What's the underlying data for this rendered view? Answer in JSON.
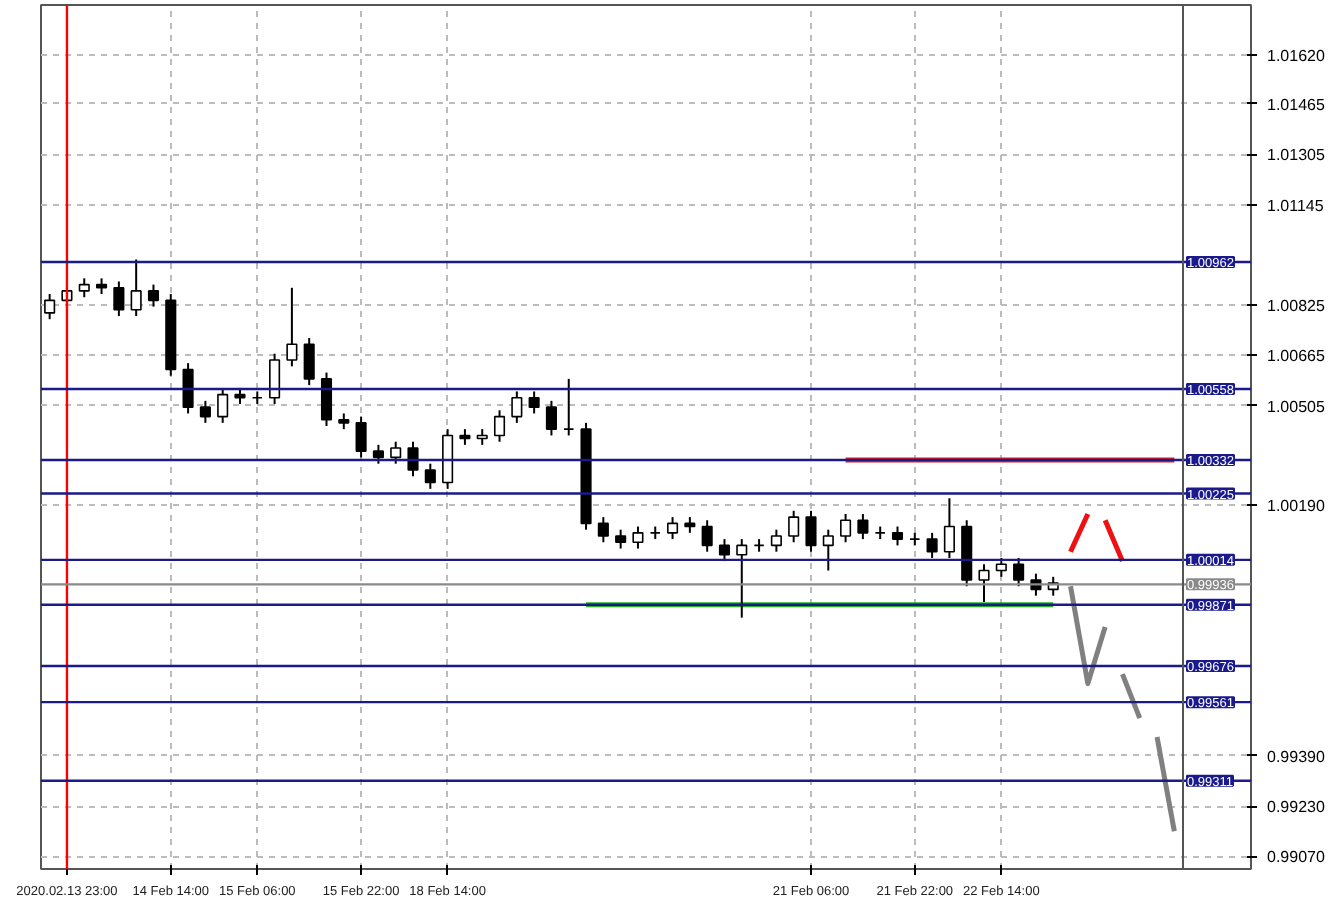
{
  "chart_data": {
    "type": "candlestick",
    "categories": [
      null,
      "2020.02.13 23:00",
      null,
      null,
      null,
      null,
      null,
      "14 Feb 14:00",
      null,
      null,
      null,
      null,
      "15 Feb 06:00",
      null,
      null,
      null,
      null,
      null,
      "15 Feb 22:00",
      null,
      null,
      null,
      null,
      "18 Feb 14:00",
      null,
      null,
      null,
      null,
      null,
      null,
      null,
      null,
      null,
      null,
      null,
      null,
      null,
      null,
      null,
      null,
      null,
      null,
      null,
      null,
      "21 Feb 06:00",
      null,
      null,
      null,
      null,
      null,
      "21 Feb 22:00",
      null,
      null,
      null,
      null,
      "22 Feb 14:00",
      null,
      null,
      null,
      null,
      null,
      null,
      null,
      null,
      null,
      null
    ],
    "ohlc": [
      [
        1.008,
        1.0086,
        1.0078,
        1.0084
      ],
      [
        1.0084,
        1.0089,
        1.0082,
        1.0087
      ],
      [
        1.0087,
        1.0091,
        1.0085,
        1.0089
      ],
      [
        1.0089,
        1.0091,
        1.0086,
        1.0088
      ],
      [
        1.0088,
        1.009,
        1.0079,
        1.0081
      ],
      [
        1.0081,
        1.0097,
        1.0079,
        1.0087
      ],
      [
        1.0087,
        1.0089,
        1.0082,
        1.0084
      ],
      [
        1.0084,
        1.0086,
        1.006,
        1.0062
      ],
      [
        1.0062,
        1.0064,
        1.0048,
        1.005
      ],
      [
        1.005,
        1.0052,
        1.0045,
        1.0047
      ],
      [
        1.0047,
        1.0056,
        1.0045,
        1.0054
      ],
      [
        1.0054,
        1.0056,
        1.0051,
        1.0053
      ],
      [
        1.0053,
        1.0055,
        1.0051,
        1.0053
      ],
      [
        1.0053,
        1.0067,
        1.0051,
        1.0065
      ],
      [
        1.0065,
        1.0088,
        1.0063,
        1.007
      ],
      [
        1.007,
        1.0072,
        1.0057,
        1.0059
      ],
      [
        1.0059,
        1.0061,
        1.0044,
        1.0046
      ],
      [
        1.0046,
        1.0048,
        1.0043,
        1.0045
      ],
      [
        1.0045,
        1.0047,
        1.0034,
        1.0036
      ],
      [
        1.0036,
        1.0038,
        1.0032,
        1.0034
      ],
      [
        1.0034,
        1.0039,
        1.0032,
        1.0037
      ],
      [
        1.0037,
        1.0039,
        1.0028,
        1.003
      ],
      [
        1.003,
        1.0032,
        1.0024,
        1.0026
      ],
      [
        1.0026,
        1.0043,
        1.0024,
        1.0041
      ],
      [
        1.0041,
        1.0043,
        1.0038,
        1.004
      ],
      [
        1.004,
        1.0043,
        1.0038,
        1.0041
      ],
      [
        1.0041,
        1.0049,
        1.0039,
        1.0047
      ],
      [
        1.0047,
        1.0055,
        1.0045,
        1.0053
      ],
      [
        1.0053,
        1.0055,
        1.0048,
        1.005
      ],
      [
        1.005,
        1.0052,
        1.0041,
        1.0043
      ],
      [
        1.0043,
        1.0059,
        1.0041,
        1.0043
      ],
      [
        1.0043,
        1.0045,
        1.0011,
        1.0013
      ],
      [
        1.0013,
        1.0015,
        1.0007,
        1.0009
      ],
      [
        1.0009,
        1.0011,
        1.0005,
        1.0007
      ],
      [
        1.0007,
        1.0012,
        1.0005,
        1.001
      ],
      [
        1.001,
        1.0012,
        1.0008,
        1.001
      ],
      [
        1.001,
        1.0015,
        1.0008,
        1.0013
      ],
      [
        1.0013,
        1.0015,
        1.001,
        1.0012
      ],
      [
        1.0012,
        1.0014,
        1.0004,
        1.0006
      ],
      [
        1.0006,
        1.0008,
        1.0001,
        1.0003
      ],
      [
        1.0003,
        1.0008,
        0.9983,
        1.0006
      ],
      [
        1.0006,
        1.0008,
        1.0004,
        1.0006
      ],
      [
        1.0006,
        1.0011,
        1.0004,
        1.0009
      ],
      [
        1.0009,
        1.0017,
        1.0007,
        1.0015
      ],
      [
        1.0015,
        1.0017,
        1.0004,
        1.0006
      ],
      [
        1.0006,
        1.0011,
        0.9998,
        1.0009
      ],
      [
        1.0009,
        1.0016,
        1.0007,
        1.0014
      ],
      [
        1.0014,
        1.0016,
        1.0008,
        1.001
      ],
      [
        1.001,
        1.0012,
        1.0008,
        1.001
      ],
      [
        1.001,
        1.0012,
        1.0006,
        1.0008
      ],
      [
        1.0008,
        1.001,
        1.0006,
        1.0008
      ],
      [
        1.0008,
        1.001,
        1.0002,
        1.0004
      ],
      [
        1.0004,
        1.0021,
        1.0002,
        1.0012
      ],
      [
        1.0012,
        1.0014,
        0.9993,
        0.9995
      ],
      [
        0.9995,
        1.0,
        0.9988,
        0.9998
      ],
      [
        0.9998,
        1.0002,
        0.9996,
        1.0
      ],
      [
        1.0,
        1.0002,
        0.9993,
        0.9995
      ],
      [
        0.9995,
        0.9997,
        0.999,
        0.9992
      ],
      [
        0.9992,
        0.9996,
        0.999,
        0.9994
      ],
      null,
      null,
      null,
      null,
      null,
      null,
      null
    ],
    "series": [
      {
        "type": "line",
        "color": "#dd1c1c",
        "values": [
          null,
          null,
          null,
          null,
          null,
          null,
          null,
          null,
          null,
          null,
          null,
          null,
          null,
          null,
          null,
          null,
          null,
          null,
          null,
          null,
          null,
          null,
          null,
          null,
          null,
          null,
          null,
          null,
          null,
          null,
          null,
          null,
          null,
          null,
          null,
          null,
          null,
          null,
          null,
          null,
          null,
          null,
          null,
          null,
          null,
          null,
          1.00332,
          1.00332,
          1.00332,
          1.00332,
          1.00332,
          1.00332,
          1.00332,
          1.00332,
          1.00332,
          1.00332,
          1.00332,
          1.00332,
          1.00332,
          1.00332,
          1.00332,
          1.00332,
          1.00332,
          1.00332,
          1.00332,
          1.00332
        ]
      },
      {
        "type": "line",
        "color": "#22b022",
        "values": [
          null,
          null,
          null,
          null,
          null,
          null,
          null,
          null,
          null,
          null,
          null,
          null,
          null,
          null,
          null,
          null,
          null,
          null,
          null,
          null,
          null,
          null,
          null,
          null,
          null,
          null,
          null,
          null,
          null,
          null,
          null,
          0.99871,
          0.99871,
          0.99871,
          0.99871,
          0.99871,
          0.99871,
          0.99871,
          0.99871,
          0.99871,
          0.99871,
          0.99871,
          0.99871,
          0.99871,
          0.99871,
          0.99871,
          0.99871,
          0.99871,
          0.99871,
          0.99871,
          0.99871,
          0.99871,
          0.99871,
          0.99871,
          0.99871,
          0.99871,
          0.99871,
          0.99871,
          0.99871,
          null,
          null,
          null,
          null,
          null,
          null,
          null
        ]
      },
      {
        "type": "line",
        "color": "#ee1111",
        "values": [
          null,
          null,
          null,
          null,
          null,
          null,
          null,
          null,
          null,
          null,
          null,
          null,
          null,
          null,
          null,
          null,
          null,
          null,
          null,
          null,
          null,
          null,
          null,
          null,
          null,
          null,
          null,
          null,
          null,
          null,
          null,
          null,
          null,
          null,
          null,
          null,
          null,
          null,
          null,
          null,
          null,
          null,
          null,
          null,
          null,
          null,
          null,
          null,
          null,
          null,
          null,
          null,
          null,
          null,
          null,
          null,
          null,
          null,
          null,
          1.0004,
          1.0016,
          null,
          null,
          null,
          null,
          null
        ]
      },
      {
        "type": "line",
        "color": "#ee1111",
        "values": [
          null,
          null,
          null,
          null,
          null,
          null,
          null,
          null,
          null,
          null,
          null,
          null,
          null,
          null,
          null,
          null,
          null,
          null,
          null,
          null,
          null,
          null,
          null,
          null,
          null,
          null,
          null,
          null,
          null,
          null,
          null,
          null,
          null,
          null,
          null,
          null,
          null,
          null,
          null,
          null,
          null,
          null,
          null,
          null,
          null,
          null,
          null,
          null,
          null,
          null,
          null,
          null,
          null,
          null,
          null,
          null,
          null,
          null,
          null,
          null,
          null,
          1.0014,
          1.0001,
          null,
          null,
          null
        ]
      },
      {
        "type": "line",
        "color": "#808080",
        "values": [
          null,
          null,
          null,
          null,
          null,
          null,
          null,
          null,
          null,
          null,
          null,
          null,
          null,
          null,
          null,
          null,
          null,
          null,
          null,
          null,
          null,
          null,
          null,
          null,
          null,
          null,
          null,
          null,
          null,
          null,
          null,
          null,
          null,
          null,
          null,
          null,
          null,
          null,
          null,
          null,
          null,
          null,
          null,
          null,
          null,
          null,
          null,
          null,
          null,
          null,
          null,
          null,
          null,
          null,
          null,
          null,
          null,
          null,
          null,
          0.9993,
          0.9962,
          0.998,
          null,
          null,
          null,
          null
        ]
      },
      {
        "type": "line",
        "color": "#808080",
        "values": [
          null,
          null,
          null,
          null,
          null,
          null,
          null,
          null,
          null,
          null,
          null,
          null,
          null,
          null,
          null,
          null,
          null,
          null,
          null,
          null,
          null,
          null,
          null,
          null,
          null,
          null,
          null,
          null,
          null,
          null,
          null,
          null,
          null,
          null,
          null,
          null,
          null,
          null,
          null,
          null,
          null,
          null,
          null,
          null,
          null,
          null,
          null,
          null,
          null,
          null,
          null,
          null,
          null,
          null,
          null,
          null,
          null,
          null,
          null,
          null,
          null,
          null,
          0.9965,
          0.9951,
          null,
          null
        ]
      },
      {
        "type": "line",
        "color": "#808080",
        "values": [
          null,
          null,
          null,
          null,
          null,
          null,
          null,
          null,
          null,
          null,
          null,
          null,
          null,
          null,
          null,
          null,
          null,
          null,
          null,
          null,
          null,
          null,
          null,
          null,
          null,
          null,
          null,
          null,
          null,
          null,
          null,
          null,
          null,
          null,
          null,
          null,
          null,
          null,
          null,
          null,
          null,
          null,
          null,
          null,
          null,
          null,
          null,
          null,
          null,
          null,
          null,
          null,
          null,
          null,
          null,
          null,
          null,
          null,
          null,
          null,
          null,
          null,
          null,
          null,
          0.9945,
          0.9915
        ]
      }
    ],
    "ylim": [
      0.9903,
      1.0178
    ],
    "yticks": [
      {
        "value": 1.0162,
        "label": "1.01620"
      },
      {
        "value": 1.01465,
        "label": "1.01465"
      },
      {
        "value": 1.01305,
        "label": "1.01305"
      },
      {
        "value": 1.01145,
        "label": "1.01145"
      },
      {
        "value": 1.00825,
        "label": "1.00825"
      },
      {
        "value": 1.00665,
        "label": "1.00665"
      },
      {
        "value": 1.00505,
        "label": "1.00505"
      },
      {
        "value": 1.0019,
        "label": "1.00190"
      },
      {
        "value": 0.9939,
        "label": "0.99390"
      },
      {
        "value": 0.9923,
        "label": "0.99230"
      },
      {
        "value": 0.9907,
        "label": "0.99070"
      }
    ],
    "ref_lines": [
      {
        "axis": "x",
        "value": "2020.02.13 23:00",
        "color": "#ff0000"
      },
      {
        "axis": "y",
        "value": 1.00962,
        "label": "1.00962",
        "color": "#1a1a8c"
      },
      {
        "axis": "y",
        "value": 1.00558,
        "label": "1.00558",
        "color": "#1a1a8c"
      },
      {
        "axis": "y",
        "value": 1.00332,
        "label": "1.00332",
        "color": "#1a1a8c"
      },
      {
        "axis": "y",
        "value": 1.00225,
        "label": "1.00225",
        "color": "#1a1a8c"
      },
      {
        "axis": "y",
        "value": 1.00014,
        "label": "1.00014",
        "color": "#1a1a8c"
      },
      {
        "axis": "y",
        "value": 0.99936,
        "label": "0.99936",
        "color": "#8a8a8a"
      },
      {
        "axis": "y",
        "value": 0.99871,
        "label": "0.99871",
        "color": "#1a1a8c"
      },
      {
        "axis": "y",
        "value": 0.99676,
        "label": "0.99676",
        "color": "#1a1a8c"
      },
      {
        "axis": "y",
        "value": 0.99561,
        "label": "0.99561",
        "color": "#1a1a8c"
      },
      {
        "axis": "y",
        "value": 0.99311,
        "label": "0.99311",
        "color": "#1a1a8c"
      }
    ],
    "grid": true
  }
}
